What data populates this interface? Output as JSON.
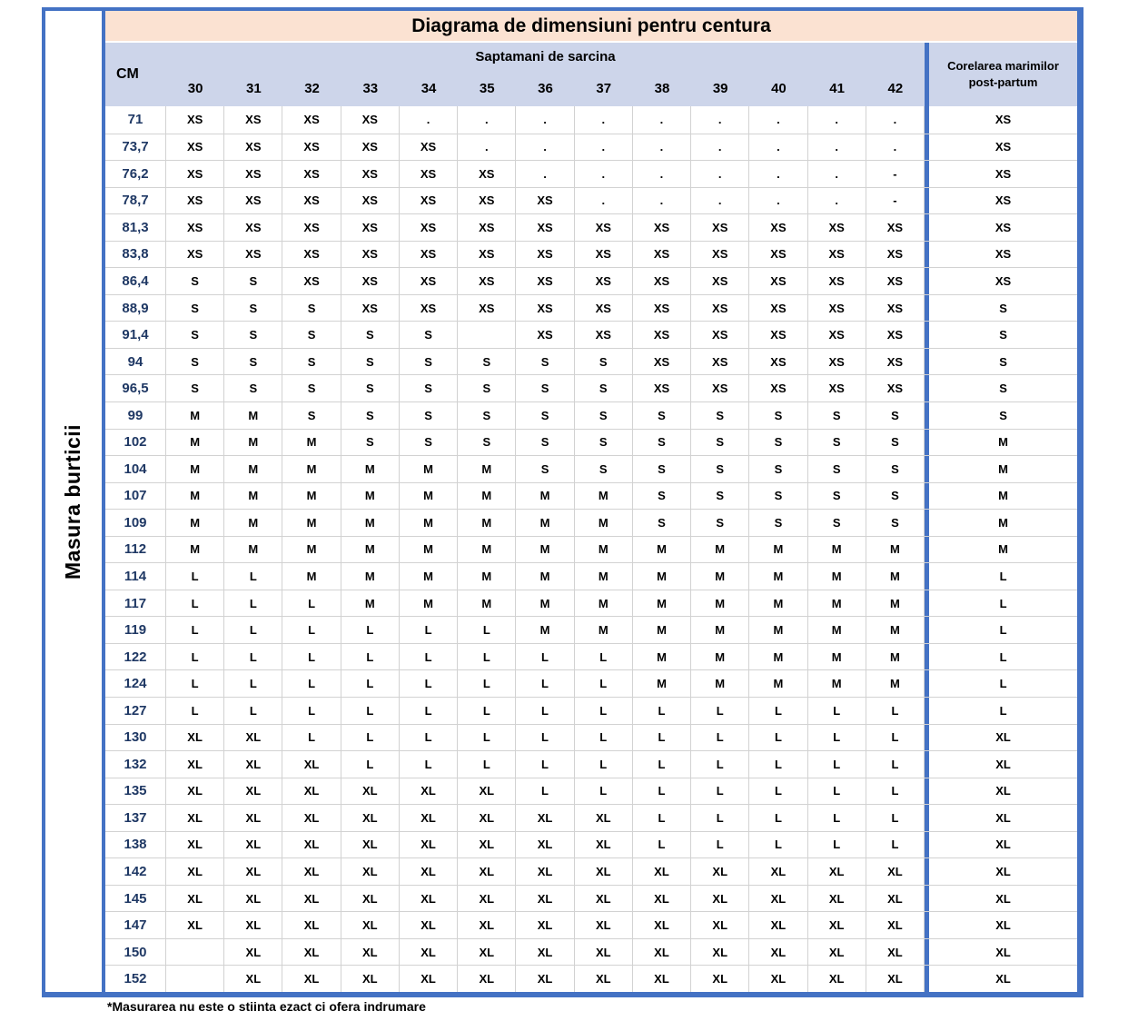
{
  "colors": {
    "border_blue": "#4472c4",
    "title_bg": "#fbe2d2",
    "header_bg": "#cdd5ea",
    "grid_line": "#d2d2d2",
    "cm_text": "#1f3864",
    "cell_text": "#000000"
  },
  "side_label": "Masura burticii",
  "footnote": "*Masurarea nu este o stiinta ezact ci ofera indrumare",
  "chart_data": {
    "type": "table",
    "title": "Diagrama de dimensiuni pentru centura",
    "column_group_label": "Saptamani de sarcina",
    "row_header_label": "CM",
    "week_columns": [
      "30",
      "31",
      "32",
      "33",
      "34",
      "35",
      "36",
      "37",
      "38",
      "39",
      "40",
      "41",
      "42"
    ],
    "postpartum_column_label": "Corelarea marimilor post-partum",
    "grid": true,
    "legend_position": "none",
    "rows": [
      {
        "cm": "71",
        "values": [
          "XS",
          "XS",
          "XS",
          "XS",
          ".",
          ".",
          ".",
          ".",
          ".",
          ".",
          ".",
          ".",
          "."
        ],
        "post": "XS"
      },
      {
        "cm": "73,7",
        "values": [
          "XS",
          "XS",
          "XS",
          "XS",
          "XS",
          ".",
          ".",
          ".",
          ".",
          ".",
          ".",
          ".",
          "."
        ],
        "post": "XS"
      },
      {
        "cm": "76,2",
        "values": [
          "XS",
          "XS",
          "XS",
          "XS",
          "XS",
          "XS",
          ".",
          ".",
          ".",
          ".",
          ".",
          ".",
          "-"
        ],
        "post": "XS"
      },
      {
        "cm": "78,7",
        "values": [
          "XS",
          "XS",
          "XS",
          "XS",
          "XS",
          "XS",
          "XS",
          ".",
          ".",
          ".",
          ".",
          ".",
          "-"
        ],
        "post": "XS"
      },
      {
        "cm": "81,3",
        "values": [
          "XS",
          "XS",
          "XS",
          "XS",
          "XS",
          "XS",
          "XS",
          "XS",
          "XS",
          "XS",
          "XS",
          "XS",
          "XS"
        ],
        "post": "XS"
      },
      {
        "cm": "83,8",
        "values": [
          "XS",
          "XS",
          "XS",
          "XS",
          "XS",
          "XS",
          "XS",
          "XS",
          "XS",
          "XS",
          "XS",
          "XS",
          "XS"
        ],
        "post": "XS"
      },
      {
        "cm": "86,4",
        "values": [
          "S",
          "S",
          "XS",
          "XS",
          "XS",
          "XS",
          "XS",
          "XS",
          "XS",
          "XS",
          "XS",
          "XS",
          "XS"
        ],
        "post": "XS"
      },
      {
        "cm": "88,9",
        "values": [
          "S",
          "S",
          "S",
          "XS",
          "XS",
          "XS",
          "XS",
          "XS",
          "XS",
          "XS",
          "XS",
          "XS",
          "XS"
        ],
        "post": "S"
      },
      {
        "cm": "91,4",
        "values": [
          "S",
          "S",
          "S",
          "S",
          "S",
          "",
          "XS",
          "XS",
          "XS",
          "XS",
          "XS",
          "XS",
          "XS"
        ],
        "post": "S"
      },
      {
        "cm": "94",
        "values": [
          "S",
          "S",
          "S",
          "S",
          "S",
          "S",
          "S",
          "S",
          "XS",
          "XS",
          "XS",
          "XS",
          "XS"
        ],
        "post": "S"
      },
      {
        "cm": "96,5",
        "values": [
          "S",
          "S",
          "S",
          "S",
          "S",
          "S",
          "S",
          "S",
          "XS",
          "XS",
          "XS",
          "XS",
          "XS"
        ],
        "post": "S"
      },
      {
        "cm": "99",
        "values": [
          "M",
          "M",
          "S",
          "S",
          "S",
          "S",
          "S",
          "S",
          "S",
          "S",
          "S",
          "S",
          "S"
        ],
        "post": "S"
      },
      {
        "cm": "102",
        "values": [
          "M",
          "M",
          "M",
          "S",
          "S",
          "S",
          "S",
          "S",
          "S",
          "S",
          "S",
          "S",
          "S"
        ],
        "post": "M"
      },
      {
        "cm": "104",
        "values": [
          "M",
          "M",
          "M",
          "M",
          "M",
          "M",
          "S",
          "S",
          "S",
          "S",
          "S",
          "S",
          "S"
        ],
        "post": "M"
      },
      {
        "cm": "107",
        "values": [
          "M",
          "M",
          "M",
          "M",
          "M",
          "M",
          "M",
          "M",
          "S",
          "S",
          "S",
          "S",
          "S"
        ],
        "post": "M"
      },
      {
        "cm": "109",
        "values": [
          "M",
          "M",
          "M",
          "M",
          "M",
          "M",
          "M",
          "M",
          "S",
          "S",
          "S",
          "S",
          "S"
        ],
        "post": "M"
      },
      {
        "cm": "112",
        "values": [
          "M",
          "M",
          "M",
          "M",
          "M",
          "M",
          "M",
          "M",
          "M",
          "M",
          "M",
          "M",
          "M"
        ],
        "post": "M"
      },
      {
        "cm": "114",
        "values": [
          "L",
          "L",
          "M",
          "M",
          "M",
          "M",
          "M",
          "M",
          "M",
          "M",
          "M",
          "M",
          "M"
        ],
        "post": "L"
      },
      {
        "cm": "117",
        "values": [
          "L",
          "L",
          "L",
          "M",
          "M",
          "M",
          "M",
          "M",
          "M",
          "M",
          "M",
          "M",
          "M"
        ],
        "post": "L"
      },
      {
        "cm": "119",
        "values": [
          "L",
          "L",
          "L",
          "L",
          "L",
          "L",
          "M",
          "M",
          "M",
          "M",
          "M",
          "M",
          "M"
        ],
        "post": "L"
      },
      {
        "cm": "122",
        "values": [
          "L",
          "L",
          "L",
          "L",
          "L",
          "L",
          "L",
          "L",
          "M",
          "M",
          "M",
          "M",
          "M"
        ],
        "post": "L"
      },
      {
        "cm": "124",
        "values": [
          "L",
          "L",
          "L",
          "L",
          "L",
          "L",
          "L",
          "L",
          "M",
          "M",
          "M",
          "M",
          "M"
        ],
        "post": "L"
      },
      {
        "cm": "127",
        "values": [
          "L",
          "L",
          "L",
          "L",
          "L",
          "L",
          "L",
          "L",
          "L",
          "L",
          "L",
          "L",
          "L"
        ],
        "post": "L"
      },
      {
        "cm": "130",
        "values": [
          "XL",
          "XL",
          "L",
          "L",
          "L",
          "L",
          "L",
          "L",
          "L",
          "L",
          "L",
          "L",
          "L"
        ],
        "post": "XL"
      },
      {
        "cm": "132",
        "values": [
          "XL",
          "XL",
          "XL",
          "L",
          "L",
          "L",
          "L",
          "L",
          "L",
          "L",
          "L",
          "L",
          "L"
        ],
        "post": "XL"
      },
      {
        "cm": "135",
        "values": [
          "XL",
          "XL",
          "XL",
          "XL",
          "XL",
          "XL",
          "L",
          "L",
          "L",
          "L",
          "L",
          "L",
          "L"
        ],
        "post": "XL"
      },
      {
        "cm": "137",
        "values": [
          "XL",
          "XL",
          "XL",
          "XL",
          "XL",
          "XL",
          "XL",
          "XL",
          "L",
          "L",
          "L",
          "L",
          "L"
        ],
        "post": "XL"
      },
      {
        "cm": "138",
        "values": [
          "XL",
          "XL",
          "XL",
          "XL",
          "XL",
          "XL",
          "XL",
          "XL",
          "L",
          "L",
          "L",
          "L",
          "L"
        ],
        "post": "XL"
      },
      {
        "cm": "142",
        "values": [
          "XL",
          "XL",
          "XL",
          "XL",
          "XL",
          "XL",
          "XL",
          "XL",
          "XL",
          "XL",
          "XL",
          "XL",
          "XL"
        ],
        "post": "XL"
      },
      {
        "cm": "145",
        "values": [
          "XL",
          "XL",
          "XL",
          "XL",
          "XL",
          "XL",
          "XL",
          "XL",
          "XL",
          "XL",
          "XL",
          "XL",
          "XL"
        ],
        "post": "XL"
      },
      {
        "cm": "147",
        "values": [
          "XL",
          "XL",
          "XL",
          "XL",
          "XL",
          "XL",
          "XL",
          "XL",
          "XL",
          "XL",
          "XL",
          "XL",
          "XL"
        ],
        "post": "XL"
      },
      {
        "cm": "150",
        "values": [
          "",
          "XL",
          "XL",
          "XL",
          "XL",
          "XL",
          "XL",
          "XL",
          "XL",
          "XL",
          "XL",
          "XL",
          "XL"
        ],
        "post": "XL"
      },
      {
        "cm": "152",
        "values": [
          "",
          "XL",
          "XL",
          "XL",
          "XL",
          "XL",
          "XL",
          "XL",
          "XL",
          "XL",
          "XL",
          "XL",
          "XL"
        ],
        "post": "XL"
      }
    ]
  }
}
